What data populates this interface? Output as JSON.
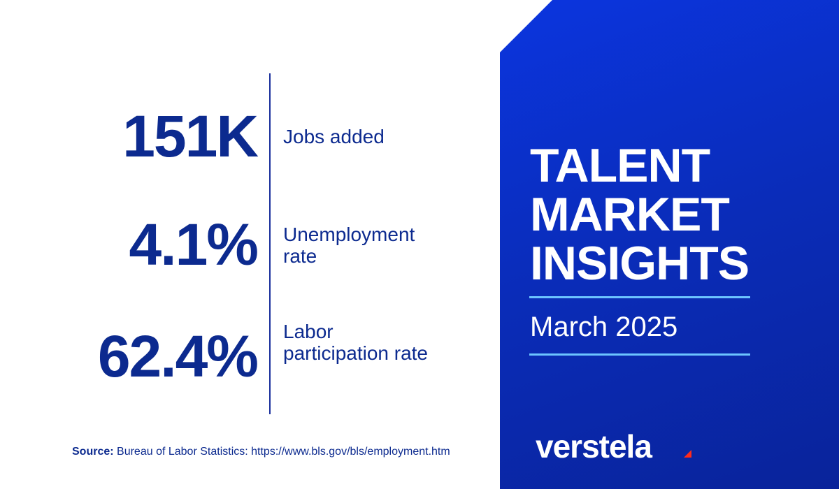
{
  "stats": [
    {
      "value": "151K",
      "label": "Jobs added"
    },
    {
      "value": "4.1%",
      "label": "Unemployment rate"
    },
    {
      "value": "62.4%",
      "label": "Labor participation rate"
    }
  ],
  "title": "TALENT MARKET INSIGHTS",
  "subtitle": "March 2025",
  "source": {
    "label": "Source:",
    "text": "Bureau of Labor Statistics: https://www.bls.gov/bls/employment.htm"
  },
  "brand": "verstela"
}
